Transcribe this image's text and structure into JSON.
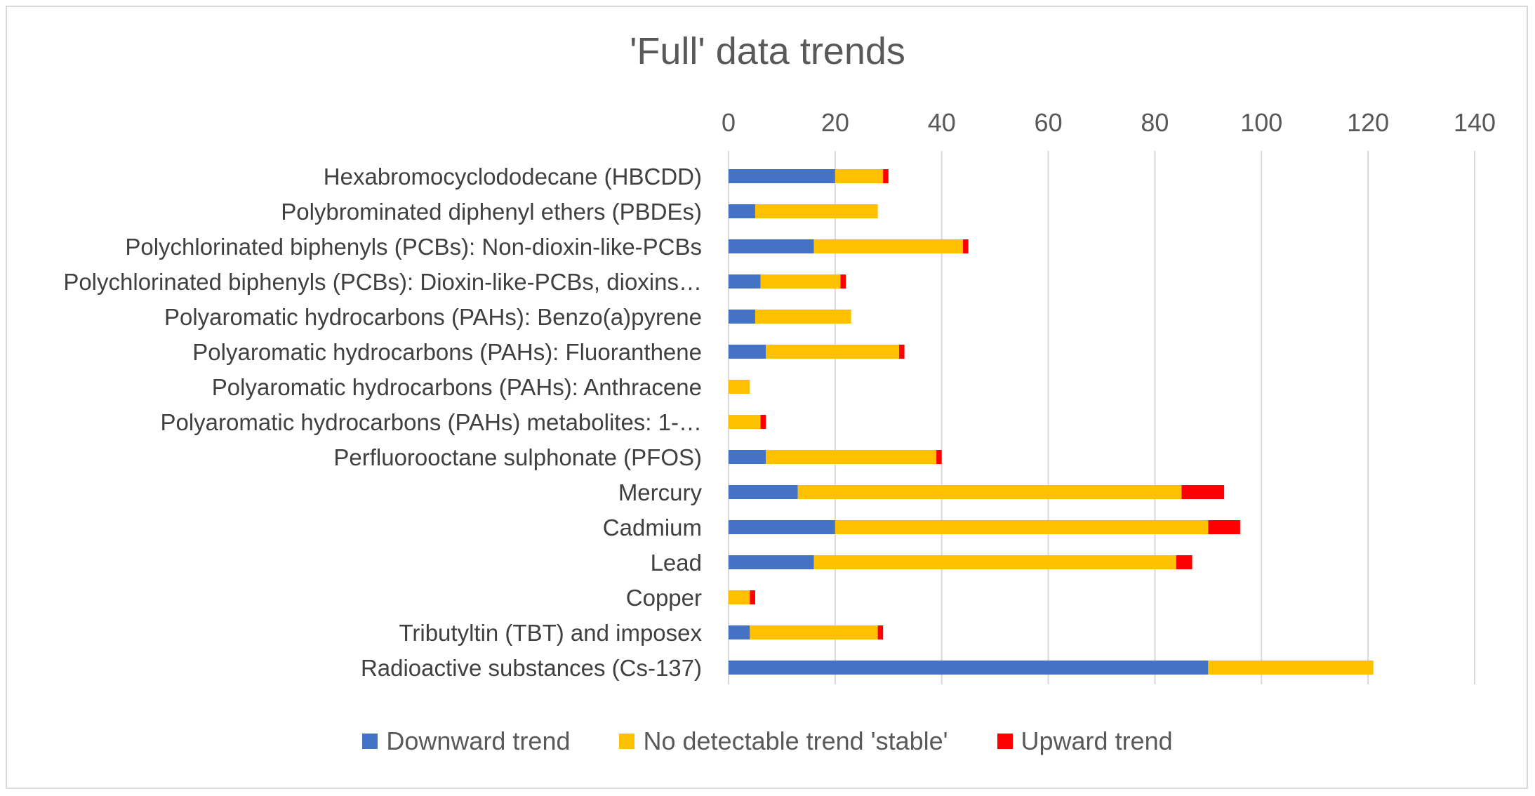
{
  "chart_data": {
    "type": "bar",
    "orientation": "horizontal",
    "stacked": true,
    "title": "'Full' data trends",
    "xlim": [
      0,
      140
    ],
    "x_ticks": [
      "0",
      "20",
      "40",
      "60",
      "80",
      "100",
      "120",
      "140"
    ],
    "x_axis_position": "top",
    "grid": true,
    "legend_position": "bottom",
    "categories": [
      "Hexabromocyclododecane (HBCDD)",
      "Polybrominated diphenyl ethers (PBDEs)",
      "Polychlorinated biphenyls (PCBs): Non-dioxin-like-PCBs",
      "Polychlorinated biphenyls (PCBs): Dioxin-like-PCBs, dioxins…",
      "Polyaromatic hydrocarbons (PAHs): Benzo(a)pyrene",
      "Polyaromatic hydrocarbons (PAHs): Fluoranthene",
      "Polyaromatic hydrocarbons (PAHs): Anthracene",
      "Polyaromatic hydrocarbons (PAHs) metabolites: 1-…",
      "Perfluorooctane sulphonate (PFOS)",
      "Mercury",
      "Cadmium",
      "Lead",
      "Copper",
      "Tributyltin (TBT) and imposex",
      "Radioactive substances (Cs-137)"
    ],
    "series": [
      {
        "name": "Downward trend",
        "color": "#4472c4",
        "values": [
          20,
          5,
          16,
          6,
          5,
          7,
          0,
          0,
          7,
          13,
          20,
          16,
          0,
          4,
          90
        ]
      },
      {
        "name": "No detectable trend 'stable'",
        "color": "#ffc000",
        "values": [
          9,
          23,
          28,
          15,
          18,
          25,
          4,
          6,
          32,
          72,
          70,
          68,
          4,
          24,
          31
        ]
      },
      {
        "name": "Upward trend",
        "color": "#ff0000",
        "values": [
          1,
          0,
          1,
          1,
          0,
          1,
          0,
          1,
          1,
          8,
          6,
          3,
          1,
          1,
          0
        ]
      }
    ]
  }
}
